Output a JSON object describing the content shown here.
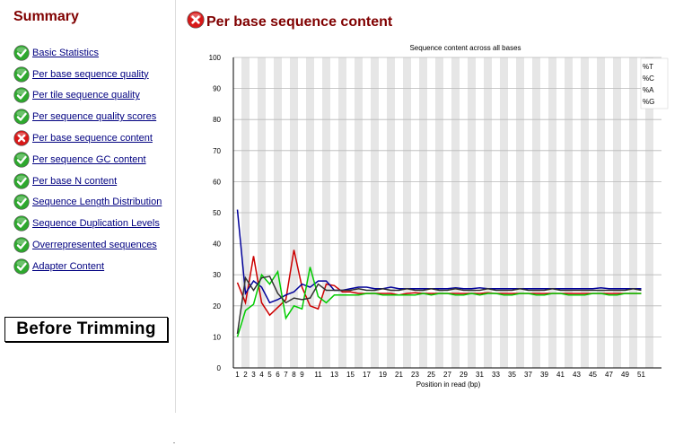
{
  "sidebar": {
    "title": "Summary",
    "modules": [
      {
        "label": "Basic Statistics",
        "status": "pass"
      },
      {
        "label": "Per base sequence quality",
        "status": "pass"
      },
      {
        "label": "Per tile sequence quality",
        "status": "pass"
      },
      {
        "label": "Per sequence quality scores",
        "status": "pass"
      },
      {
        "label": "Per base sequence content",
        "status": "fail"
      },
      {
        "label": "Per sequence GC content",
        "status": "pass"
      },
      {
        "label": "Per base N content",
        "status": "pass"
      },
      {
        "label": "Sequence Length Distribution",
        "status": "pass"
      },
      {
        "label": "Sequence Duplication Levels",
        "status": "pass"
      },
      {
        "label": "Overrepresented sequences",
        "status": "pass"
      },
      {
        "label": "Adapter Content",
        "status": "pass"
      }
    ],
    "annotation": "Before Trimming"
  },
  "main": {
    "title": "Per base sequence content",
    "status": "fail"
  },
  "colors": {
    "title": "#800000",
    "link": "#000080",
    "pass": "#2ea82e",
    "fail": "#d81818"
  },
  "chart_data": {
    "type": "line",
    "title": "Sequence content across all bases",
    "xlabel": "Position in read (bp)",
    "ylabel": "",
    "ylim": [
      0,
      100
    ],
    "yticks": [
      0,
      10,
      20,
      30,
      40,
      50,
      60,
      70,
      80,
      90,
      100
    ],
    "x": [
      1,
      2,
      3,
      4,
      5,
      6,
      7,
      8,
      9,
      10,
      11,
      12,
      13,
      14,
      15,
      16,
      17,
      18,
      19,
      20,
      21,
      22,
      23,
      24,
      25,
      26,
      27,
      28,
      29,
      30,
      31,
      32,
      33,
      34,
      35,
      36,
      37,
      38,
      39,
      40,
      41,
      42,
      43,
      44,
      45,
      46,
      47,
      48,
      49,
      50,
      51
    ],
    "xticks": [
      1,
      2,
      3,
      4,
      5,
      6,
      7,
      8,
      9,
      11,
      13,
      15,
      17,
      19,
      21,
      23,
      25,
      27,
      29,
      31,
      33,
      35,
      37,
      39,
      41,
      43,
      45,
      47,
      49,
      51
    ],
    "legend_position": "top-right",
    "series": [
      {
        "name": "%T",
        "color": "#cc0000",
        "values": [
          27.5,
          21,
          36,
          21,
          17,
          19.5,
          22,
          38,
          26,
          20,
          19,
          27,
          26.5,
          24.5,
          24.5,
          24,
          24,
          24,
          24,
          24,
          23.5,
          24,
          24.2,
          24,
          24,
          24,
          24,
          24,
          24,
          24,
          24,
          24.2,
          24,
          24,
          24,
          24,
          24,
          24,
          24,
          24,
          24,
          24,
          24,
          24,
          24,
          24,
          24,
          24,
          24,
          24,
          24
        ]
      },
      {
        "name": "%C",
        "color": "#000099",
        "values": [
          51,
          24,
          28,
          26,
          21,
          22,
          23.5,
          24.5,
          27,
          26,
          28,
          28,
          25,
          25,
          25.5,
          26,
          26,
          25.5,
          25.5,
          26,
          25.5,
          25.5,
          25.5,
          25.5,
          25.5,
          25.5,
          25.5,
          25.8,
          25.5,
          25.5,
          25.8,
          25.5,
          25.5,
          25.5,
          25.5,
          25.5,
          25.5,
          25.5,
          25.5,
          25.5,
          25.5,
          25.5,
          25.5,
          25.5,
          25.5,
          25.8,
          25.5,
          25.5,
          25.5,
          25.5,
          25.5
        ]
      },
      {
        "name": "%A",
        "color": "#00cc00",
        "values": [
          10,
          18.5,
          20.5,
          30,
          27,
          31,
          16,
          20,
          19,
          32.5,
          23,
          21,
          23.5,
          23.5,
          23.5,
          23.5,
          24,
          24,
          23.5,
          23.5,
          23.5,
          23.5,
          23.5,
          24,
          23.5,
          24,
          24,
          23.5,
          23.5,
          24,
          23.5,
          24,
          24,
          23.5,
          23.5,
          24,
          24,
          23.5,
          23.5,
          24,
          24,
          23.5,
          23.5,
          23.5,
          24,
          24,
          23.5,
          23.5,
          24,
          24,
          24
        ]
      },
      {
        "name": "%G",
        "color": "#333333",
        "values": [
          11,
          29,
          25,
          29,
          29.5,
          24,
          21,
          22.5,
          22,
          22.5,
          27,
          25,
          25,
          25,
          25,
          25.5,
          25,
          25,
          25.5,
          25,
          25,
          25.5,
          25,
          25,
          25.5,
          25,
          25,
          25.5,
          25,
          25,
          25,
          25.5,
          25,
          25,
          25,
          25.5,
          25,
          25,
          25,
          25.5,
          25,
          25,
          25,
          25,
          25,
          25,
          25,
          25,
          25,
          25.5,
          25
        ]
      }
    ]
  }
}
